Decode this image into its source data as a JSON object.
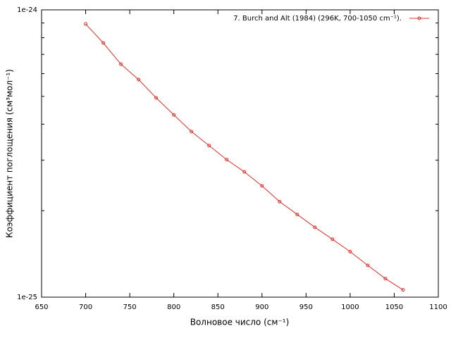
{
  "chart_data": {
    "type": "line",
    "xlabel": "Волновое число (см⁻¹)",
    "ylabel": "Коэффициент поглощения (см³мол⁻¹)",
    "x": [
      700,
      720,
      740,
      760,
      780,
      800,
      820,
      840,
      860,
      880,
      900,
      920,
      940,
      960,
      980,
      1000,
      1020,
      1040,
      1060
    ],
    "series": [
      {
        "name": "7. Burch and Alt (1984) (296K, 700-1050 cm⁻¹).",
        "color": "#e0302a",
        "values": [
          8.93e-25,
          7.67e-25,
          6.47e-25,
          5.72e-25,
          4.94e-25,
          4.31e-25,
          3.77e-25,
          3.37e-25,
          3.01e-25,
          2.73e-25,
          2.44e-25,
          2.15e-25,
          1.94e-25,
          1.75e-25,
          1.59e-25,
          1.44e-25,
          1.29e-25,
          1.16e-25,
          1.06e-25
        ]
      }
    ],
    "xlim": [
      650,
      1100
    ],
    "xticks": [
      650,
      700,
      750,
      800,
      850,
      900,
      950,
      1000,
      1050,
      1100
    ],
    "ylim": [
      1e-25,
      1e-24
    ],
    "yticks": [
      {
        "value": 1e-25,
        "label": "1e-25"
      },
      {
        "value": 1e-24,
        "label": "1e-24"
      }
    ],
    "yminorticks": [
      2e-25,
      3e-25,
      4e-25,
      5e-25,
      6e-25,
      7e-25,
      8e-25,
      9e-25
    ],
    "ylog": true,
    "legend": "top-right"
  }
}
